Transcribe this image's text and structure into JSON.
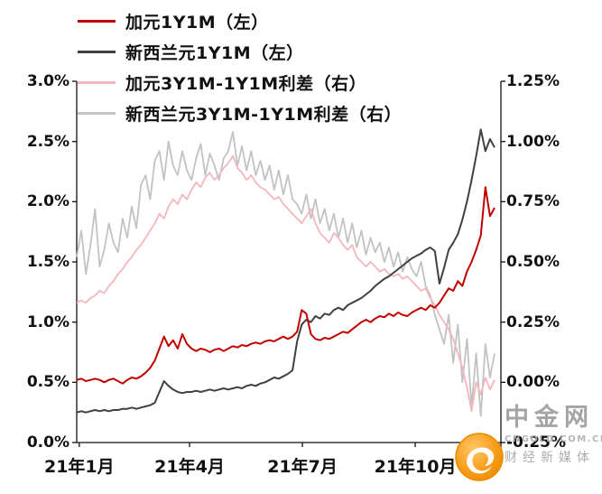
{
  "legend": [
    {
      "label": "加元1Y1M（左）",
      "color": "#c00000"
    },
    {
      "label": "新西兰元1Y1M（左）",
      "color": "#404040"
    },
    {
      "label": "加元3Y1M-1Y1M利差（右）",
      "color": "#f4b6ba"
    },
    {
      "label": "新西兰元3Y1M-1Y1M利差（右）",
      "color": "#c2c2c2"
    }
  ],
  "watermark": {
    "title": "中金网",
    "url": "CNGOLD.COM.CN",
    "subtitle": "财经新媒体"
  },
  "chart_data": {
    "type": "line",
    "title": "",
    "grid": false,
    "legend_position": "top-left",
    "x_axis": {
      "ticks": [
        {
          "f": 0.006,
          "label": "21年1月"
        },
        {
          "f": 0.266,
          "label": "21年4月"
        },
        {
          "f": 0.532,
          "label": "21年7月"
        },
        {
          "f": 0.798,
          "label": "21年10月"
        }
      ]
    },
    "axes": {
      "left": {
        "range": [
          0,
          3
        ],
        "ticks": [
          {
            "value": 3.0,
            "label": "3.0%"
          },
          {
            "value": 2.5,
            "label": "2.5%"
          },
          {
            "value": 2.0,
            "label": "2.0%"
          },
          {
            "value": 1.5,
            "label": "1.5%"
          },
          {
            "value": 1.0,
            "label": "1.0%"
          },
          {
            "value": 0.5,
            "label": "0.5%"
          },
          {
            "value": 0.0,
            "label": "0.0%"
          }
        ]
      },
      "right": {
        "range": [
          -0.25,
          1.25
        ],
        "ticks": [
          {
            "value": 1.25,
            "label": "1.25%"
          },
          {
            "value": 1.0,
            "label": "1.00%"
          },
          {
            "value": 0.75,
            "label": "0.75%"
          },
          {
            "value": 0.5,
            "label": "0.50%"
          },
          {
            "value": 0.25,
            "label": "0.25%"
          },
          {
            "value": 0.0,
            "label": "0.00%"
          },
          {
            "value": -0.25,
            "label": "-0.25%"
          }
        ]
      }
    },
    "series": [
      {
        "id": "nzd-spread",
        "name": "新西兰元3Y1M-1Y1M利差（右）",
        "axis": "right",
        "color": "#c2c2c2",
        "width": 1.8,
        "values": [
          0.52,
          0.63,
          0.45,
          0.57,
          0.72,
          0.48,
          0.55,
          0.66,
          0.58,
          0.54,
          0.68,
          0.6,
          0.73,
          0.64,
          0.82,
          0.86,
          0.76,
          0.92,
          0.96,
          0.84,
          1.0,
          0.9,
          0.86,
          0.96,
          0.88,
          0.84,
          0.93,
          0.99,
          0.86,
          0.95,
          0.9,
          0.84,
          0.93,
          0.96,
          1.04,
          0.9,
          0.98,
          0.88,
          0.96,
          0.86,
          0.92,
          0.84,
          0.9,
          0.8,
          0.88,
          0.78,
          0.86,
          0.76,
          0.74,
          0.7,
          0.78,
          0.68,
          0.76,
          0.66,
          0.72,
          0.63,
          0.7,
          0.6,
          0.68,
          0.58,
          0.66,
          0.56,
          0.63,
          0.53,
          0.6,
          0.54,
          0.58,
          0.5,
          0.56,
          0.48,
          0.54,
          0.46,
          0.52,
          0.47,
          0.44,
          0.5,
          0.4,
          0.36,
          0.28,
          0.22,
          0.16,
          0.28,
          0.08,
          0.24,
          0.0,
          0.18,
          -0.1,
          0.12,
          -0.14,
          0.16,
          0.02,
          0.12
        ]
      },
      {
        "id": "cad-spread",
        "name": "加元3Y1M-1Y1M利差（右）",
        "axis": "right",
        "color": "#f4b6ba",
        "width": 1.8,
        "values": [
          0.33,
          0.34,
          0.33,
          0.35,
          0.36,
          0.38,
          0.37,
          0.4,
          0.42,
          0.45,
          0.47,
          0.5,
          0.52,
          0.55,
          0.57,
          0.6,
          0.63,
          0.66,
          0.7,
          0.68,
          0.73,
          0.76,
          0.74,
          0.78,
          0.76,
          0.8,
          0.83,
          0.81,
          0.85,
          0.87,
          0.84,
          0.86,
          0.89,
          0.91,
          0.94,
          0.89,
          0.87,
          0.84,
          0.86,
          0.83,
          0.81,
          0.8,
          0.78,
          0.76,
          0.77,
          0.74,
          0.72,
          0.7,
          0.68,
          0.66,
          0.69,
          0.72,
          0.66,
          0.62,
          0.6,
          0.58,
          0.62,
          0.6,
          0.57,
          0.55,
          0.57,
          0.52,
          0.5,
          0.48,
          0.5,
          0.48,
          0.46,
          0.47,
          0.45,
          0.44,
          0.45,
          0.43,
          0.44,
          0.42,
          0.4,
          0.38,
          0.39,
          0.35,
          0.32,
          0.28,
          0.25,
          0.22,
          0.18,
          0.12,
          0.06,
          -0.02,
          -0.12,
          0.0,
          -0.05,
          0.02,
          -0.03,
          0.01
        ]
      },
      {
        "id": "nzd-1y1m",
        "name": "新西兰元1Y1M（左）",
        "axis": "left",
        "color": "#404040",
        "width": 2,
        "values": [
          0.25,
          0.26,
          0.25,
          0.26,
          0.27,
          0.26,
          0.27,
          0.26,
          0.27,
          0.27,
          0.28,
          0.28,
          0.29,
          0.28,
          0.29,
          0.3,
          0.31,
          0.33,
          0.42,
          0.51,
          0.47,
          0.44,
          0.42,
          0.41,
          0.42,
          0.42,
          0.43,
          0.42,
          0.43,
          0.44,
          0.43,
          0.44,
          0.45,
          0.44,
          0.45,
          0.46,
          0.45,
          0.47,
          0.48,
          0.47,
          0.49,
          0.5,
          0.52,
          0.54,
          0.53,
          0.55,
          0.57,
          0.6,
          0.84,
          0.98,
          1.02,
          1.0,
          1.05,
          1.03,
          1.07,
          1.06,
          1.1,
          1.12,
          1.1,
          1.14,
          1.16,
          1.18,
          1.2,
          1.23,
          1.26,
          1.3,
          1.33,
          1.36,
          1.38,
          1.41,
          1.44,
          1.47,
          1.5,
          1.53,
          1.55,
          1.57,
          1.6,
          1.62,
          1.59,
          1.32,
          1.45,
          1.6,
          1.66,
          1.73,
          1.85,
          2.0,
          2.18,
          2.38,
          2.6,
          2.42,
          2.52,
          2.45
        ]
      },
      {
        "id": "cad-1y1m",
        "name": "加元1Y1M（左）",
        "axis": "left",
        "color": "#c00000",
        "width": 2,
        "values": [
          0.52,
          0.53,
          0.51,
          0.52,
          0.53,
          0.52,
          0.5,
          0.52,
          0.53,
          0.51,
          0.49,
          0.52,
          0.54,
          0.53,
          0.55,
          0.58,
          0.62,
          0.68,
          0.78,
          0.88,
          0.8,
          0.85,
          0.78,
          0.9,
          0.82,
          0.78,
          0.76,
          0.78,
          0.77,
          0.75,
          0.77,
          0.78,
          0.76,
          0.78,
          0.8,
          0.79,
          0.81,
          0.8,
          0.82,
          0.83,
          0.82,
          0.84,
          0.85,
          0.84,
          0.86,
          0.88,
          0.86,
          0.88,
          0.92,
          1.1,
          1.07,
          0.9,
          0.86,
          0.85,
          0.87,
          0.86,
          0.88,
          0.9,
          0.92,
          0.91,
          0.94,
          0.97,
          1.0,
          1.02,
          1.0,
          1.03,
          1.05,
          1.04,
          1.07,
          1.05,
          1.08,
          1.06,
          1.05,
          1.08,
          1.1,
          1.12,
          1.1,
          1.14,
          1.12,
          1.16,
          1.22,
          1.28,
          1.26,
          1.34,
          1.3,
          1.42,
          1.5,
          1.6,
          1.72,
          2.12,
          1.88,
          1.95
        ]
      }
    ]
  }
}
